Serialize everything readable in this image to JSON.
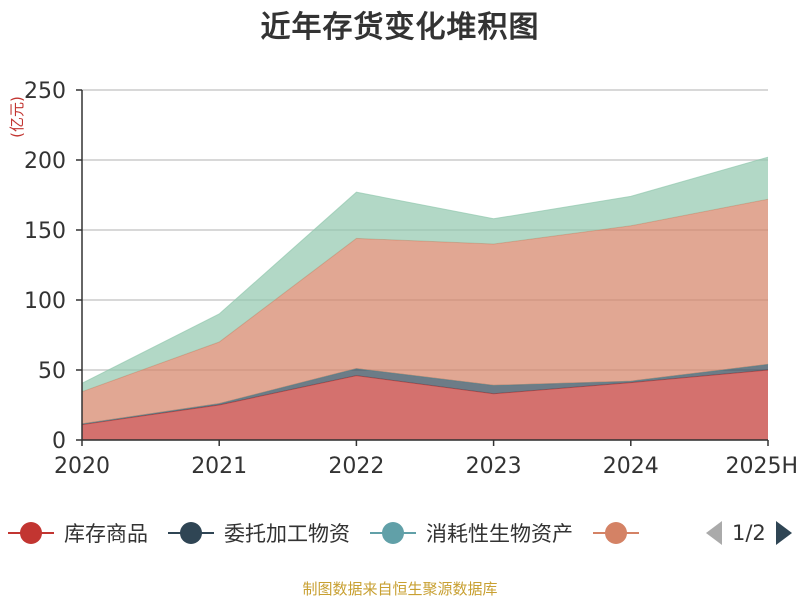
{
  "chart_data": {
    "type": "area",
    "stacked": true,
    "title": "近年存货变化堆积图",
    "unit_label": "(亿元)",
    "categories": [
      "2020",
      "2021",
      "2022",
      "2023",
      "2024",
      "2025H"
    ],
    "ylim": [
      0,
      250
    ],
    "y_ticks": [
      0,
      50,
      100,
      150,
      200,
      250
    ],
    "grid": true,
    "legend_position": "bottom",
    "series": [
      {
        "name": "库存商品",
        "color": "#c23531",
        "values": [
          11,
          25,
          46,
          33,
          41,
          50
        ]
      },
      {
        "name": "委托加工物资",
        "color": "#2f4554",
        "values": [
          0.5,
          1,
          5,
          6,
          1,
          4
        ]
      },
      {
        "name": "消耗性生物资产",
        "color": "#61a0a8",
        "values": [
          0,
          0,
          0,
          0,
          0,
          0
        ]
      },
      {
        "name": "",
        "color": "#d48265",
        "values": [
          23,
          44,
          93,
          101,
          111,
          118
        ]
      },
      {
        "name": "",
        "color": "#91c7ae",
        "values": [
          6,
          20,
          33,
          18,
          21,
          30
        ]
      }
    ]
  },
  "legend_page": "1/2",
  "source": "制图数据来自恒生聚源数据库"
}
